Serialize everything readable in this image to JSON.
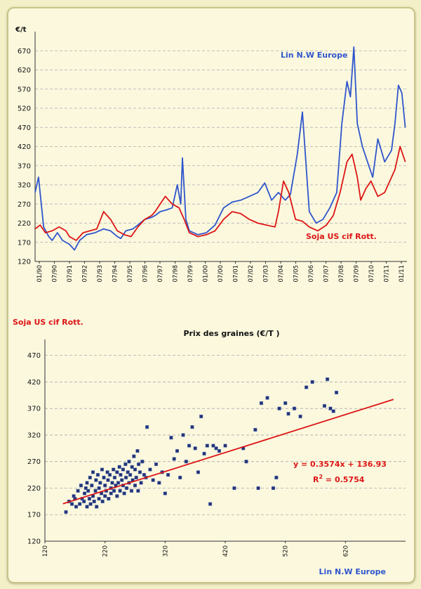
{
  "chart_data": [
    {
      "type": "line",
      "ylabel": "€/t",
      "ylim": [
        120,
        720
      ],
      "y_ticks": [
        120,
        170,
        220,
        270,
        320,
        370,
        420,
        470,
        520,
        570,
        620,
        670
      ],
      "x_ticks": [
        "01/90",
        "07/90",
        "07/91",
        "07/92",
        "07/93",
        "07/94",
        "07/95",
        "07/96",
        "07/97",
        "07/98",
        "07/99",
        "01/00",
        "07/00",
        "07/01",
        "07/02",
        "07/03",
        "07/04",
        "07/05",
        "07/06",
        "07/07",
        "07/08",
        "07/09",
        "07/10",
        "07/11",
        "01/11"
      ],
      "grid": true,
      "series": [
        {
          "name": "Lin N.W Europe",
          "color": "#2f55cc",
          "x": [
            1990.0,
            1990.2,
            1990.5,
            1990.8,
            1991.0,
            1991.3,
            1991.6,
            1992.0,
            1992.3,
            1992.6,
            1993.0,
            1993.5,
            1994.0,
            1994.4,
            1994.8,
            1995.0,
            1995.3,
            1995.7,
            1996.0,
            1996.4,
            1996.8,
            1997.0,
            1997.3,
            1997.7,
            1998.0,
            1998.3,
            1998.5,
            1998.6,
            1998.8,
            1999.0,
            1999.5,
            2000.0,
            2000.5,
            2001.0,
            2001.5,
            2002.0,
            2002.5,
            2003.0,
            2003.4,
            2003.8,
            2004.2,
            2004.6,
            2004.9,
            2005.3,
            2005.6,
            2006.0,
            2006.4,
            2006.8,
            2007.2,
            2007.6,
            2007.9,
            2008.2,
            2008.4,
            2008.6,
            2008.8,
            2009.1,
            2009.4,
            2009.7,
            2010.0,
            2010.4,
            2010.8,
            2011.0,
            2011.2,
            2011.4,
            2011.6
          ],
          "y": [
            300,
            340,
            210,
            185,
            175,
            195,
            175,
            165,
            150,
            175,
            190,
            195,
            205,
            200,
            185,
            180,
            200,
            205,
            215,
            230,
            235,
            240,
            250,
            255,
            260,
            320,
            270,
            390,
            230,
            200,
            190,
            195,
            215,
            260,
            275,
            280,
            290,
            300,
            325,
            280,
            300,
            280,
            295,
            400,
            510,
            250,
            220,
            230,
            260,
            300,
            480,
            590,
            550,
            680,
            480,
            420,
            380,
            340,
            440,
            380,
            410,
            480,
            580,
            560,
            470
          ]
        },
        {
          "name": "Soja US cif Rott.",
          "color": "#dd1515",
          "x": [
            1990.0,
            1990.3,
            1990.6,
            1991.0,
            1991.4,
            1991.8,
            1992.0,
            1992.4,
            1992.8,
            1993.2,
            1993.6,
            1994.0,
            1994.4,
            1994.8,
            1995.2,
            1995.6,
            1996.0,
            1996.4,
            1996.8,
            1997.0,
            1997.3,
            1997.6,
            1998.0,
            1998.4,
            1998.7,
            1999.0,
            1999.5,
            2000.0,
            2000.5,
            2001.0,
            2001.5,
            2002.0,
            2002.5,
            2003.0,
            2003.5,
            2004.0,
            2004.2,
            2004.5,
            2004.8,
            2005.2,
            2005.6,
            2006.0,
            2006.5,
            2007.0,
            2007.4,
            2007.8,
            2008.2,
            2008.5,
            2008.8,
            2009.0,
            2009.3,
            2009.6,
            2010.0,
            2010.4,
            2010.8,
            2011.0,
            2011.3,
            2011.6
          ],
          "y": [
            205,
            215,
            195,
            200,
            210,
            200,
            185,
            175,
            195,
            200,
            205,
            250,
            230,
            200,
            190,
            185,
            210,
            230,
            240,
            250,
            270,
            290,
            270,
            260,
            230,
            195,
            185,
            190,
            200,
            230,
            250,
            245,
            230,
            220,
            215,
            210,
            250,
            330,
            300,
            230,
            225,
            210,
            200,
            215,
            240,
            300,
            380,
            400,
            340,
            280,
            310,
            330,
            290,
            300,
            340,
            360,
            420,
            380
          ]
        }
      ],
      "annotations": [
        "Lin N.W Europe",
        "Soja US cif Rott."
      ]
    },
    {
      "type": "scatter",
      "title": "Prix des graines (€/T )",
      "xlabel": "Lin N.W Europe",
      "ylabel": "Soja US cif Rott.",
      "xlim": [
        120,
        720
      ],
      "ylim": [
        120,
        500
      ],
      "x_ticks": [
        120,
        220,
        320,
        420,
        520,
        620
      ],
      "y_ticks": [
        120,
        170,
        220,
        270,
        320,
        370,
        420,
        470
      ],
      "grid": true,
      "trendline": {
        "slope": 0.3574,
        "intercept": 136.93,
        "color": "#dd1515"
      },
      "equation": "y = 0.3574x + 136.93",
      "r2_label": "= 0.5754",
      "marker_color": "#223377",
      "points": [
        [
          155,
          175
        ],
        [
          160,
          195
        ],
        [
          165,
          190
        ],
        [
          168,
          205
        ],
        [
          170,
          200
        ],
        [
          172,
          185
        ],
        [
          175,
          215
        ],
        [
          178,
          190
        ],
        [
          180,
          225
        ],
        [
          182,
          200
        ],
        [
          185,
          195
        ],
        [
          186,
          210
        ],
        [
          188,
          220
        ],
        [
          190,
          230
        ],
        [
          190,
          185
        ],
        [
          192,
          215
        ],
        [
          194,
          200
        ],
        [
          195,
          240
        ],
        [
          196,
          190
        ],
        [
          198,
          225
        ],
        [
          200,
          205
        ],
        [
          200,
          250
        ],
        [
          202,
          195
        ],
        [
          204,
          215
        ],
        [
          205,
          235
        ],
        [
          206,
          185
        ],
        [
          208,
          245
        ],
        [
          210,
          220
        ],
        [
          210,
          200
        ],
        [
          212,
          230
        ],
        [
          214,
          210
        ],
        [
          215,
          255
        ],
        [
          216,
          195
        ],
        [
          218,
          240
        ],
        [
          220,
          225
        ],
        [
          220,
          205
        ],
        [
          222,
          215
        ],
        [
          224,
          250
        ],
        [
          225,
          235
        ],
        [
          226,
          200
        ],
        [
          228,
          245
        ],
        [
          230,
          220
        ],
        [
          230,
          210
        ],
        [
          232,
          230
        ],
        [
          234,
          255
        ],
        [
          235,
          215
        ],
        [
          236,
          240
        ],
        [
          238,
          225
        ],
        [
          240,
          250
        ],
        [
          240,
          205
        ],
        [
          242,
          230
        ],
        [
          244,
          260
        ],
        [
          245,
          215
        ],
        [
          246,
          245
        ],
        [
          248,
          235
        ],
        [
          250,
          225
        ],
        [
          250,
          255
        ],
        [
          252,
          210
        ],
        [
          254,
          265
        ],
        [
          255,
          240
        ],
        [
          256,
          220
        ],
        [
          258,
          250
        ],
        [
          260,
          230
        ],
        [
          260,
          270
        ],
        [
          262,
          245
        ],
        [
          264,
          215
        ],
        [
          265,
          260
        ],
        [
          266,
          235
        ],
        [
          268,
          280
        ],
        [
          270,
          225
        ],
        [
          270,
          255
        ],
        [
          272,
          240
        ],
        [
          274,
          290
        ],
        [
          275,
          215
        ],
        [
          276,
          265
        ],
        [
          278,
          250
        ],
        [
          280,
          230
        ],
        [
          282,
          270
        ],
        [
          285,
          245
        ],
        [
          288,
          240
        ],
        [
          290,
          335
        ],
        [
          295,
          255
        ],
        [
          300,
          235
        ],
        [
          305,
          265
        ],
        [
          310,
          230
        ],
        [
          315,
          250
        ],
        [
          320,
          210
        ],
        [
          325,
          245
        ],
        [
          330,
          315
        ],
        [
          335,
          275
        ],
        [
          340,
          290
        ],
        [
          345,
          240
        ],
        [
          350,
          320
        ],
        [
          355,
          270
        ],
        [
          360,
          300
        ],
        [
          365,
          335
        ],
        [
          370,
          295
        ],
        [
          375,
          250
        ],
        [
          380,
          355
        ],
        [
          385,
          285
        ],
        [
          390,
          300
        ],
        [
          395,
          190
        ],
        [
          400,
          300
        ],
        [
          405,
          295
        ],
        [
          410,
          290
        ],
        [
          420,
          300
        ],
        [
          435,
          220
        ],
        [
          450,
          295
        ],
        [
          455,
          270
        ],
        [
          470,
          330
        ],
        [
          475,
          220
        ],
        [
          480,
          380
        ],
        [
          490,
          390
        ],
        [
          500,
          220
        ],
        [
          505,
          240
        ],
        [
          510,
          370
        ],
        [
          520,
          380
        ],
        [
          525,
          360
        ],
        [
          535,
          370
        ],
        [
          545,
          355
        ],
        [
          555,
          410
        ],
        [
          565,
          420
        ],
        [
          585,
          375
        ],
        [
          590,
          425
        ],
        [
          595,
          370
        ],
        [
          600,
          365
        ],
        [
          605,
          400
        ]
      ]
    }
  ]
}
